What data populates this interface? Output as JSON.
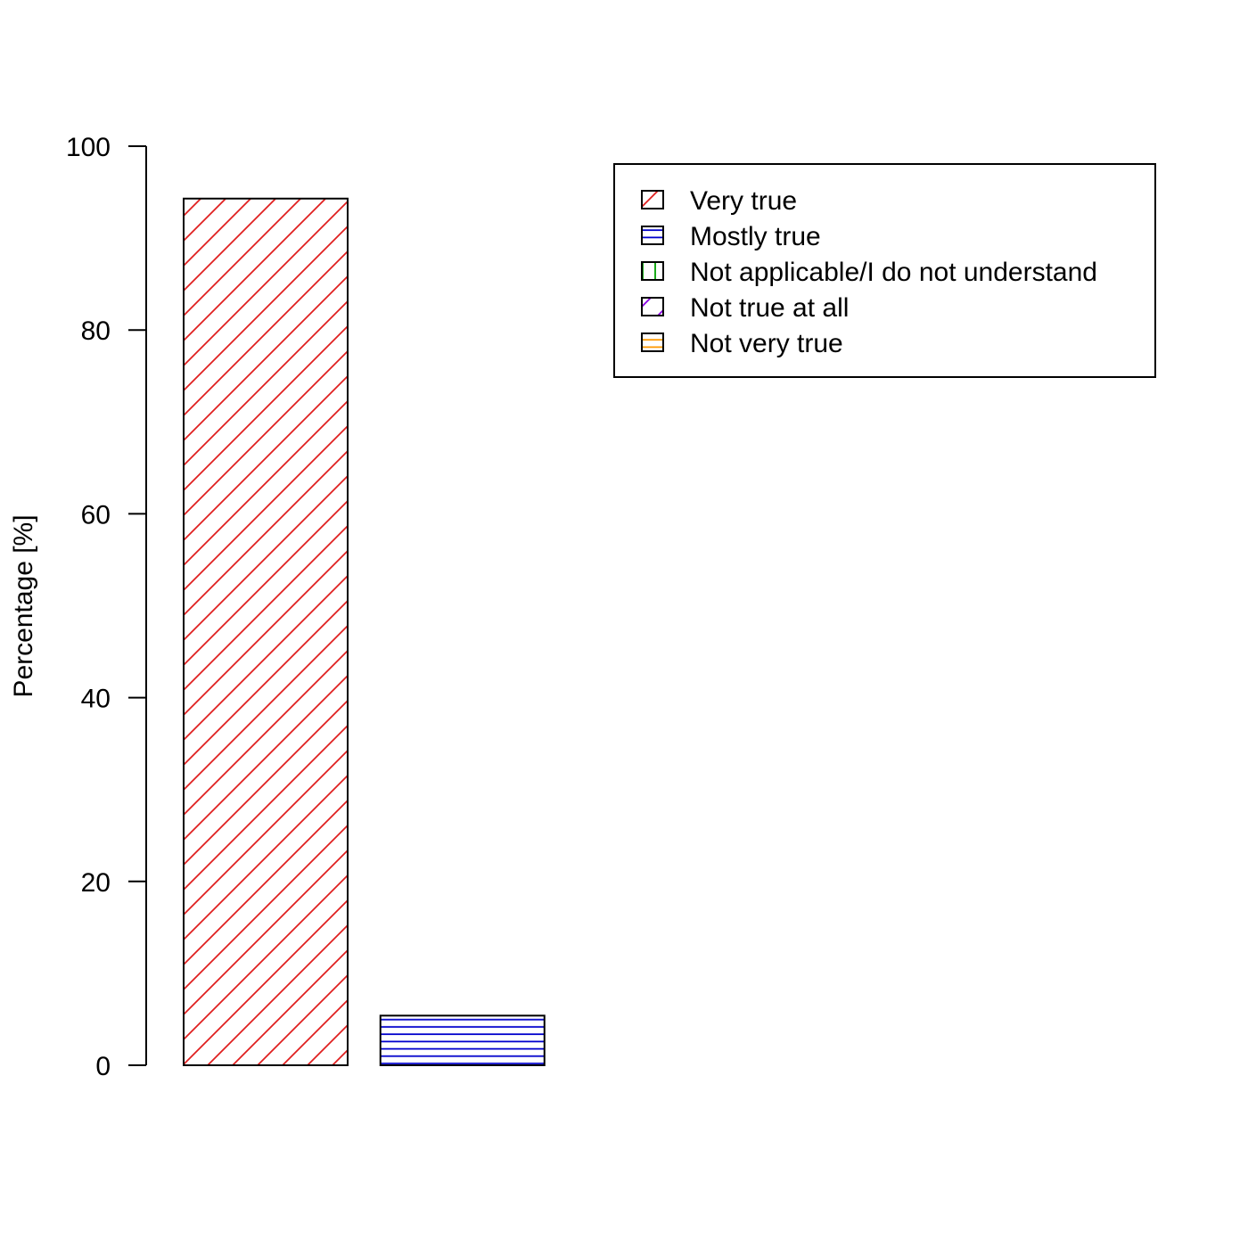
{
  "chart_data": {
    "type": "bar",
    "title": "",
    "xlabel": "",
    "ylabel": "Percentage [%]",
    "ylim": [
      0,
      100
    ],
    "yticks": [
      0,
      20,
      40,
      60,
      80,
      100
    ],
    "grid": false,
    "legend_position": "top-right",
    "categories": [
      "Very true",
      "Mostly true",
      "Not applicable/I do not understand",
      "Not true at all",
      "Not very true"
    ],
    "values": [
      94.3,
      5.4,
      0,
      0,
      0
    ],
    "patterns": [
      {
        "kind": "diagonal",
        "color": "#e02020"
      },
      {
        "kind": "horizontal",
        "color": "#0000cc"
      },
      {
        "kind": "vertical",
        "color": "#00a000"
      },
      {
        "kind": "diagonal",
        "color": "#8a00e6"
      },
      {
        "kind": "horizontal",
        "color": "#ff9900"
      }
    ]
  }
}
